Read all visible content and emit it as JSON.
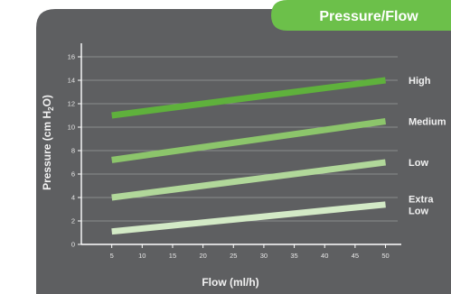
{
  "header": {
    "title": "Pressure/Flow"
  },
  "colors": {
    "panel": "#5e5f61",
    "header": "#6cc04a",
    "axis": "#ffffff",
    "grid": "#9a9b9d"
  },
  "chart_data": {
    "type": "line",
    "title": "Pressure/Flow",
    "xlabel": "Flow (ml/h)",
    "ylabel": "Pressure (cm H2O)",
    "ylabel_parts": {
      "main": "Pressure (cm H",
      "sub": "2",
      "tail": "O)"
    },
    "xlim": [
      0,
      52
    ],
    "ylim": [
      0,
      17
    ],
    "xticks": [
      5,
      10,
      15,
      20,
      25,
      30,
      35,
      40,
      45,
      50
    ],
    "yticks": [
      0,
      2,
      4,
      6,
      8,
      10,
      12,
      14,
      16
    ],
    "grid": true,
    "legend": "right",
    "series": [
      {
        "name": "High",
        "label_lines": [
          "High"
        ],
        "x": [
          5,
          50
        ],
        "y": [
          11,
          14
        ],
        "color": "#5fb13c"
      },
      {
        "name": "Medium",
        "label_lines": [
          "Medium"
        ],
        "x": [
          5,
          50
        ],
        "y": [
          7.2,
          10.5
        ],
        "color": "#8cc56b"
      },
      {
        "name": "Low",
        "label_lines": [
          "Low"
        ],
        "x": [
          5,
          50
        ],
        "y": [
          4,
          7
        ],
        "color": "#b1d89a"
      },
      {
        "name": "Extra Low",
        "label_lines": [
          "Extra",
          "Low"
        ],
        "x": [
          5,
          50
        ],
        "y": [
          1.1,
          3.4
        ],
        "color": "#d3eac6"
      }
    ]
  }
}
